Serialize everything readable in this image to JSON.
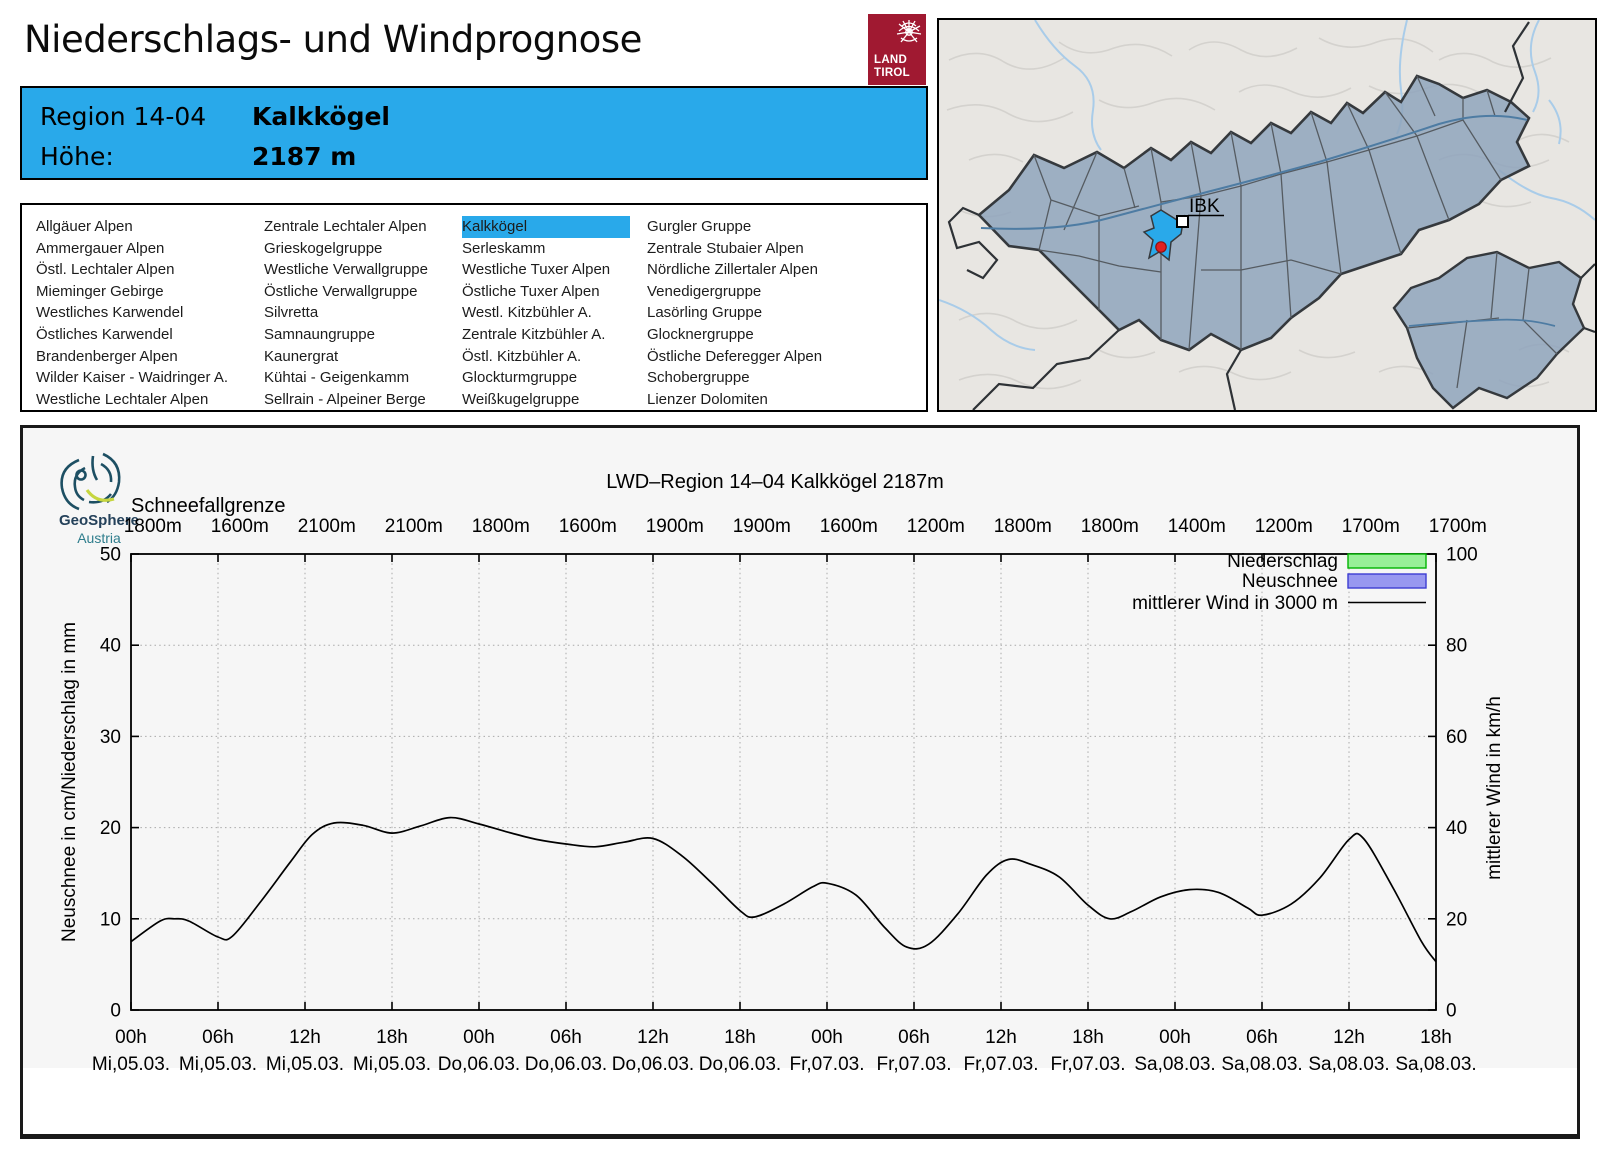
{
  "page": {
    "title": "Niederschlags- und Windprognose"
  },
  "tirol_logo": {
    "line1": "LAND",
    "line2": "TIROL",
    "color": "#a01931"
  },
  "theme": {
    "accent_blue": "#29a9ea"
  },
  "header": {
    "region_label": "Region 14-04",
    "region_name": "Kalkkögel",
    "hoehe_label": "Höhe:",
    "hoehe_value": "2187 m"
  },
  "region_list": {
    "selected": "Kalkkögel",
    "columns": [
      [
        "Allgäuer Alpen",
        "Ammergauer Alpen",
        "Östl. Lechtaler Alpen",
        "Mieminger Gebirge",
        "Westliches Karwendel",
        "Östliches Karwendel",
        "Brandenberger Alpen",
        "Wilder Kaiser - Waidringer A.",
        "Westliche Lechtaler Alpen"
      ],
      [
        "Zentrale Lechtaler Alpen",
        "Grieskogelgruppe",
        "Westliche Verwallgruppe",
        "Östliche Verwallgruppe",
        "Silvretta",
        "Samnaungruppe",
        "Kaunergrat",
        "Kühtai - Geigenkamm",
        "Sellrain - Alpeiner Berge"
      ],
      [
        "Kalkkögel",
        "Serleskamm",
        "Westliche Tuxer Alpen",
        "Östliche Tuxer Alpen",
        "Westl. Kitzbühler A.",
        "Zentrale Kitzbühler A.",
        "Östl. Kitzbühler A.",
        "Glockturmgruppe",
        "Weißkugelgruppe"
      ],
      [
        "Gurgler Gruppe",
        "Zentrale Stubaier Alpen",
        "Nördliche Zillertaler Alpen",
        "Venedigergruppe",
        "Lasörling Gruppe",
        "Glocknergruppe",
        "Östliche Deferegger Alpen",
        "Schobergruppe",
        "Lienzer Dolomiten"
      ]
    ]
  },
  "map": {
    "ibk_label": "IBK",
    "highlight_color": "#29a9ea",
    "region_fill": "#8fa5bc"
  },
  "geosphere": {
    "name": "GeoSphere",
    "country": "Austria"
  },
  "chart_data": {
    "type": "line",
    "title": "LWD–Region 14–04 Kalkkögel 2187m",
    "ylabel_left": "Neuschnee in cm/Niederschlag in mm",
    "ylabel_right": "mittlerer Wind in km/h",
    "ylim_left": [
      0,
      50
    ],
    "ylim_right": [
      0,
      100
    ],
    "y_ticks_left": [
      0,
      10,
      20,
      30,
      40,
      50
    ],
    "y_ticks_right": [
      0,
      20,
      40,
      60,
      80,
      100
    ],
    "grid": true,
    "legend_position": "top-right",
    "schneefallgrenze": {
      "label": "Schneefallgrenze",
      "values": [
        "1800m",
        "1600m",
        "2100m",
        "2100m",
        "1800m",
        "1600m",
        "1900m",
        "1900m",
        "1600m",
        "1200m",
        "1800m",
        "1800m",
        "1400m",
        "1200m",
        "1700m",
        "1700m"
      ]
    },
    "x_ticks": [
      {
        "hour": "00h",
        "date": "Mi,05.03."
      },
      {
        "hour": "06h",
        "date": "Mi,05.03."
      },
      {
        "hour": "12h",
        "date": "Mi,05.03."
      },
      {
        "hour": "18h",
        "date": "Mi,05.03."
      },
      {
        "hour": "00h",
        "date": "Do,06.03."
      },
      {
        "hour": "06h",
        "date": "Do,06.03."
      },
      {
        "hour": "12h",
        "date": "Do,06.03."
      },
      {
        "hour": "18h",
        "date": "Do,06.03."
      },
      {
        "hour": "00h",
        "date": "Fr,07.03."
      },
      {
        "hour": "06h",
        "date": "Fr,07.03."
      },
      {
        "hour": "12h",
        "date": "Fr,07.03."
      },
      {
        "hour": "18h",
        "date": "Fr,07.03."
      },
      {
        "hour": "00h",
        "date": "Sa,08.03."
      },
      {
        "hour": "06h",
        "date": "Sa,08.03."
      },
      {
        "hour": "12h",
        "date": "Sa,08.03."
      },
      {
        "hour": "18h",
        "date": "Sa,08.03."
      }
    ],
    "legend": {
      "items": [
        {
          "label": "Niederschlag",
          "swatch": "box",
          "fill": "#98f098",
          "stroke": "#00b400",
          "css": "fill:#98f098;stroke:#00b400;stroke-width:1.4"
        },
        {
          "label": "Neuschnee",
          "swatch": "box",
          "fill": "#9898f0",
          "stroke": "#3c3cd2",
          "css": "fill:#9898f0;stroke:#3c3cd2;stroke-width:1.4"
        },
        {
          "label": "mittlerer Wind in 3000 m",
          "swatch": "line",
          "stroke": "#000000",
          "css": "stroke:#000000;stroke-width:1.6"
        }
      ]
    },
    "series": [
      {
        "name": "mittlerer Wind in 3000 m",
        "axis": "right",
        "unit": "km/h",
        "points_t_hours_vs_kmh": [
          [
            0,
            15
          ],
          [
            2,
            19.5
          ],
          [
            3,
            20
          ],
          [
            4,
            19.5
          ],
          [
            6,
            16
          ],
          [
            7,
            16.2
          ],
          [
            9,
            24
          ],
          [
            11,
            32.5
          ],
          [
            12.5,
            38.5
          ],
          [
            14,
            41
          ],
          [
            16,
            40.5
          ],
          [
            18,
            38.8
          ],
          [
            20,
            40.4
          ],
          [
            22,
            42.2
          ],
          [
            24,
            40.8
          ],
          [
            26,
            39
          ],
          [
            28,
            37.4
          ],
          [
            30,
            36.4
          ],
          [
            32,
            35.8
          ],
          [
            34,
            36.8
          ],
          [
            36,
            37.6
          ],
          [
            38,
            33.8
          ],
          [
            40,
            28
          ],
          [
            42,
            21.8
          ],
          [
            43,
            20.4
          ],
          [
            45,
            23.2
          ],
          [
            47,
            27
          ],
          [
            48,
            27.8
          ],
          [
            50,
            25.2
          ],
          [
            52,
            18
          ],
          [
            53.5,
            13.8
          ],
          [
            55,
            14.4
          ],
          [
            57,
            21
          ],
          [
            59,
            29.6
          ],
          [
            60.5,
            33
          ],
          [
            62,
            32
          ],
          [
            64,
            29.2
          ],
          [
            66,
            23
          ],
          [
            67.5,
            20
          ],
          [
            69,
            21.6
          ],
          [
            71,
            24.8
          ],
          [
            73,
            26.4
          ],
          [
            75,
            25.8
          ],
          [
            77,
            22.4
          ],
          [
            78,
            20.8
          ],
          [
            80,
            23.2
          ],
          [
            82,
            29
          ],
          [
            84,
            37.4
          ],
          [
            85,
            37.6
          ],
          [
            87,
            27
          ],
          [
            89,
            15
          ],
          [
            90,
            10.6
          ]
        ]
      },
      {
        "name": "Niederschlag",
        "axis": "left",
        "unit": "mm",
        "values": []
      },
      {
        "name": "Neuschnee",
        "axis": "left",
        "unit": "cm",
        "values": []
      }
    ]
  }
}
